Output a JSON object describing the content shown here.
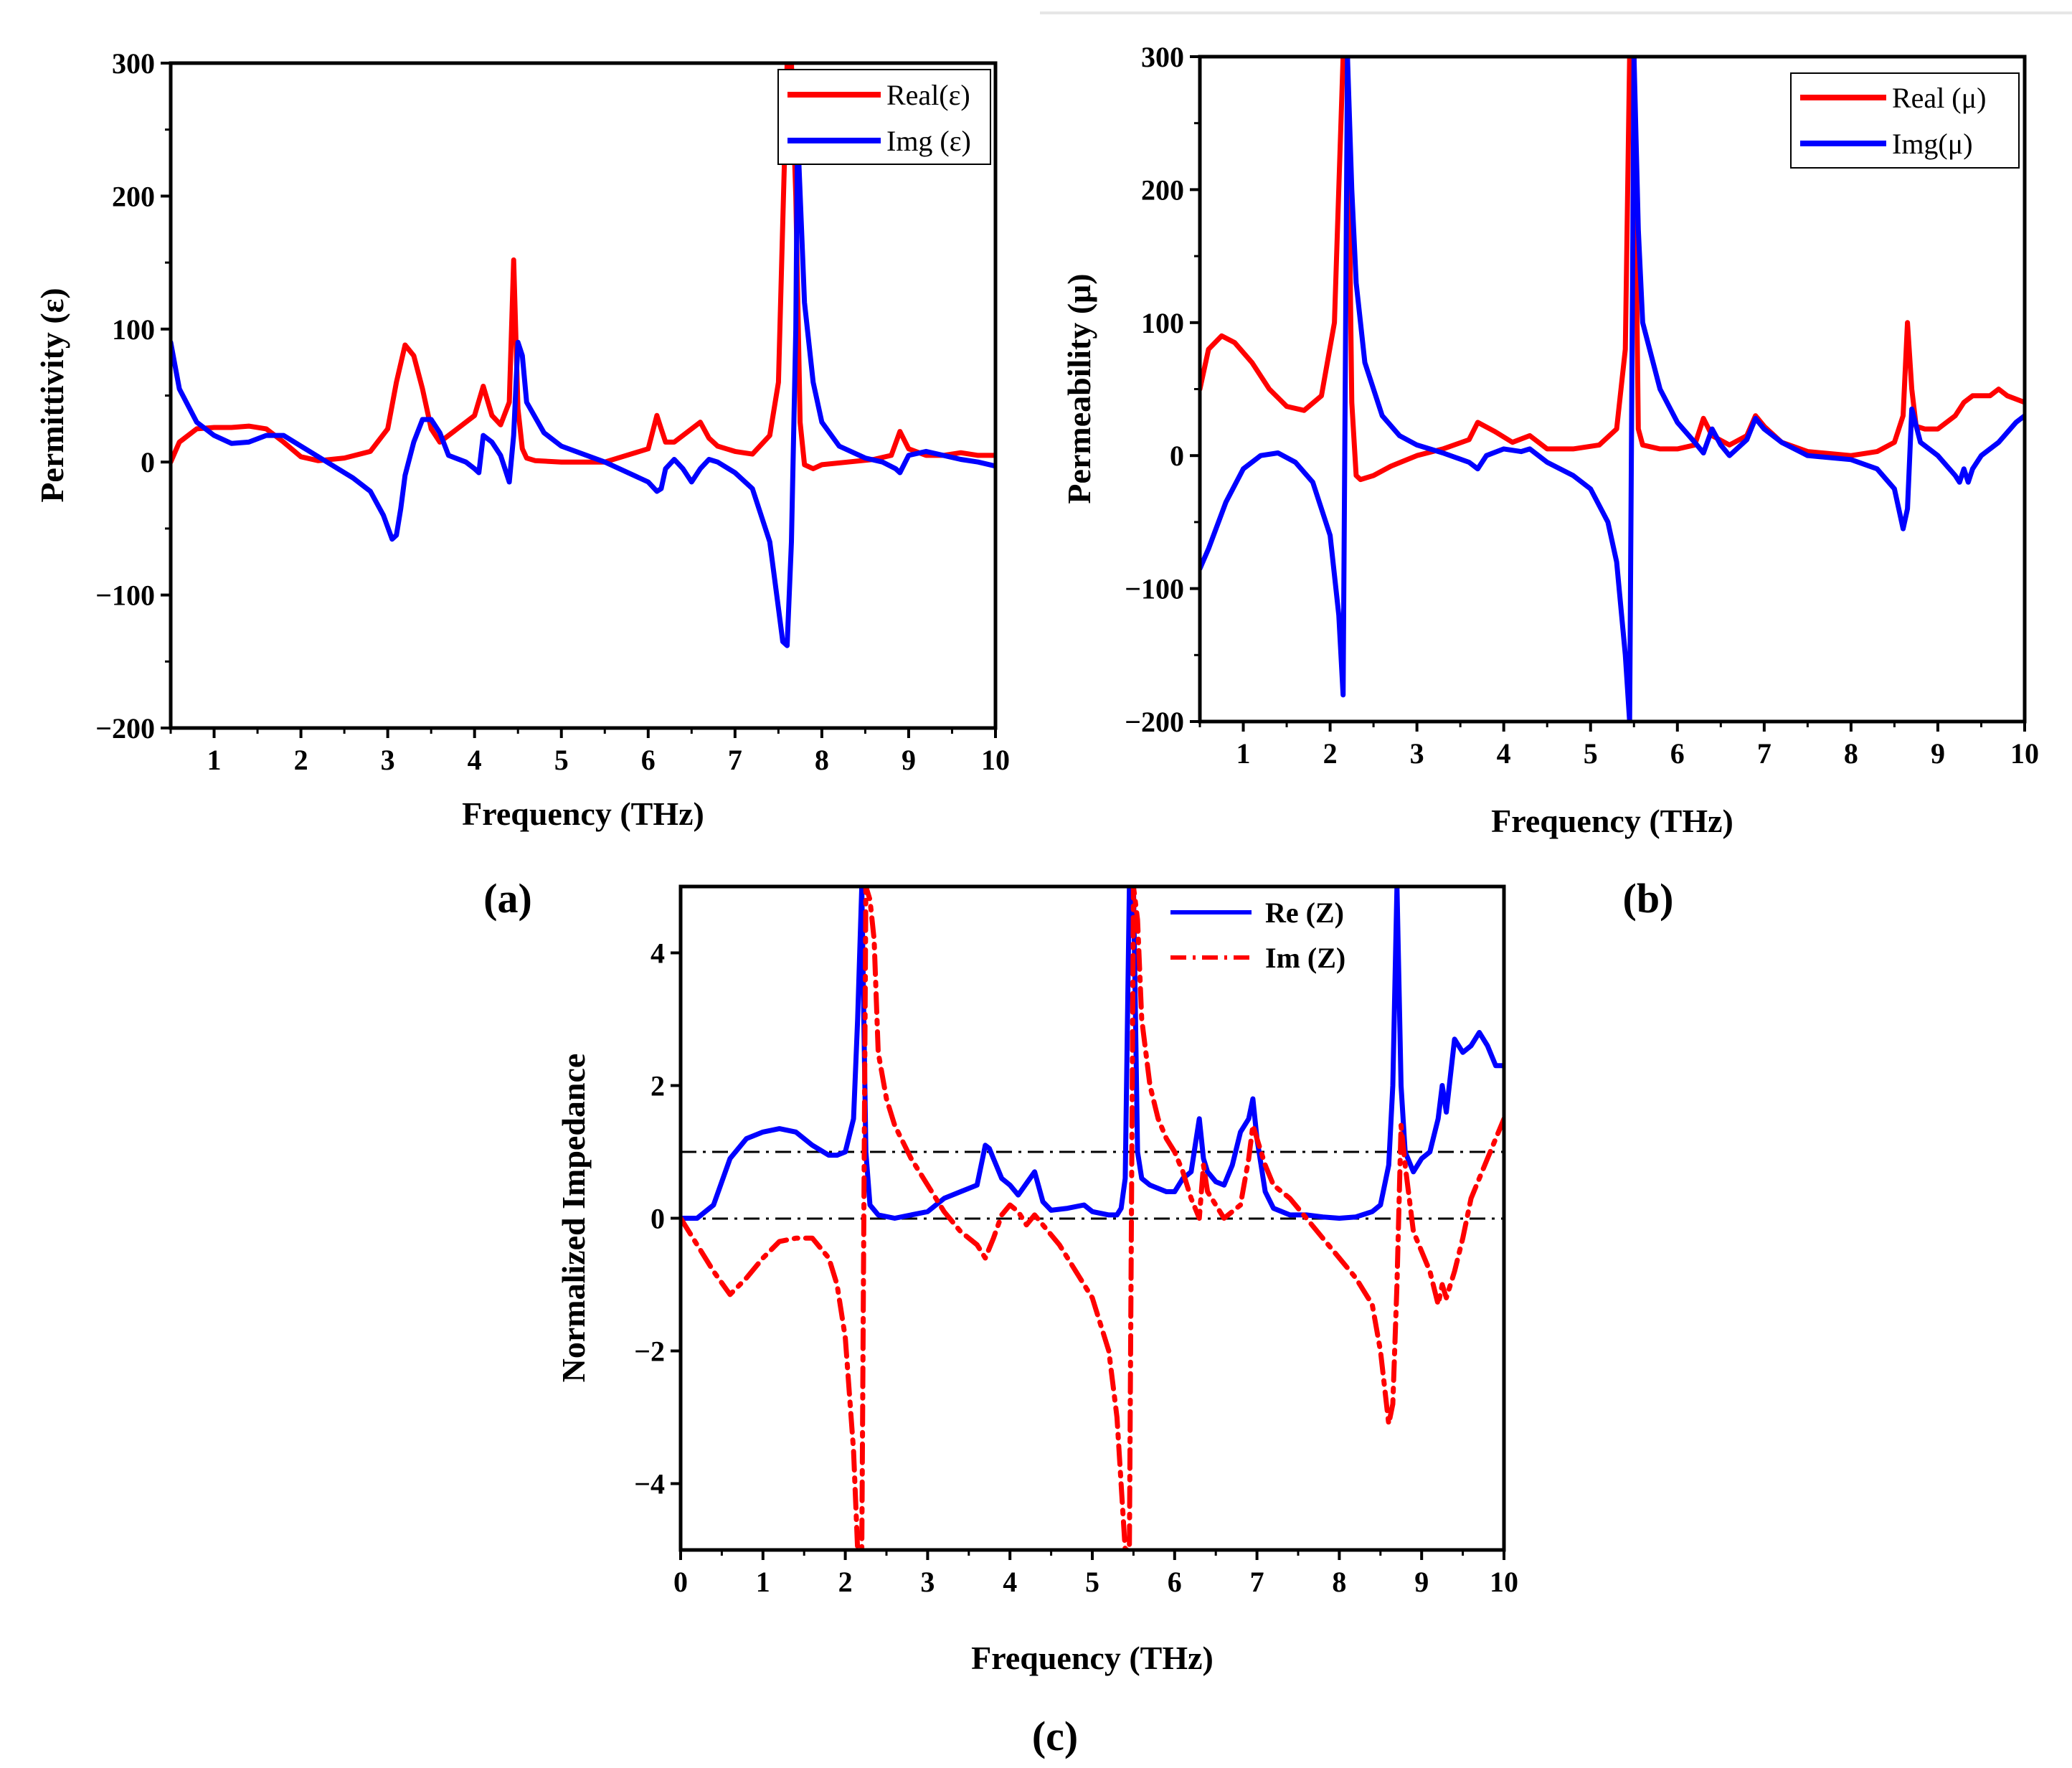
{
  "chart_data": [
    {
      "id": "a",
      "type": "line",
      "panel_label": "(a)",
      "xlabel": "Frequency (THz)",
      "ylabel": "Permittivity (ε)",
      "xlim": [
        0.5,
        10
      ],
      "ylim": [
        -200,
        300
      ],
      "xticks": [
        1,
        2,
        3,
        4,
        5,
        6,
        7,
        8,
        9,
        10
      ],
      "yticks": [
        -200,
        -100,
        0,
        100,
        200,
        300
      ],
      "ytick_labels": [
        "−200",
        "−100",
        "0",
        "100",
        "200",
        "300"
      ],
      "grid": false,
      "legend_position": "top-right",
      "series": [
        {
          "name": "Real(ε)",
          "color": "#ff0000",
          "dash": "solid",
          "x": [
            0.5,
            0.6,
            0.8,
            1.0,
            1.2,
            1.4,
            1.6,
            1.8,
            2.0,
            2.2,
            2.5,
            2.8,
            3.0,
            3.1,
            3.2,
            3.3,
            3.4,
            3.5,
            3.6,
            3.8,
            4.0,
            4.1,
            4.2,
            4.3,
            4.4,
            4.45,
            4.5,
            4.55,
            4.6,
            4.7,
            5.0,
            5.5,
            6.0,
            6.1,
            6.15,
            6.2,
            6.3,
            6.5,
            6.6,
            6.7,
            6.8,
            7.0,
            7.2,
            7.4,
            7.5,
            7.55,
            7.6,
            7.65,
            7.7,
            7.75,
            7.8,
            7.9,
            8.0,
            8.3,
            8.6,
            8.8,
            8.9,
            9.0,
            9.2,
            9.4,
            9.6,
            9.8,
            10.0
          ],
          "y": [
            0,
            15,
            25,
            26,
            26,
            27,
            25,
            15,
            4,
            1,
            3,
            8,
            25,
            60,
            88,
            80,
            55,
            25,
            15,
            25,
            35,
            57,
            35,
            28,
            45,
            152,
            40,
            10,
            3,
            1,
            0,
            0,
            10,
            35,
            25,
            15,
            15,
            25,
            30,
            18,
            12,
            8,
            6,
            20,
            60,
            180,
            300,
            300,
            200,
            30,
            -2,
            -5,
            -2,
            0,
            2,
            5,
            23,
            10,
            5,
            5,
            7,
            5,
            5
          ]
        },
        {
          "name": "Img (ε)",
          "color": "#0000ff",
          "dash": "solid",
          "x": [
            0.5,
            0.6,
            0.8,
            1.0,
            1.2,
            1.4,
            1.6,
            1.8,
            2.0,
            2.3,
            2.6,
            2.8,
            2.95,
            3.05,
            3.1,
            3.15,
            3.2,
            3.3,
            3.4,
            3.5,
            3.6,
            3.7,
            3.9,
            4.0,
            4.05,
            4.1,
            4.2,
            4.3,
            4.4,
            4.45,
            4.5,
            4.55,
            4.6,
            4.8,
            5.0,
            5.5,
            6.0,
            6.1,
            6.15,
            6.2,
            6.3,
            6.4,
            6.5,
            6.6,
            6.7,
            6.8,
            7.0,
            7.2,
            7.4,
            7.5,
            7.55,
            7.6,
            7.65,
            7.7,
            7.72,
            7.8,
            7.9,
            8.0,
            8.2,
            8.5,
            8.7,
            8.85,
            8.9,
            9.0,
            9.2,
            9.4,
            9.6,
            9.8,
            10.0
          ],
          "y": [
            90,
            55,
            30,
            20,
            14,
            15,
            20,
            20,
            12,
            0,
            -12,
            -22,
            -40,
            -58,
            -55,
            -35,
            -10,
            15,
            32,
            32,
            22,
            5,
            0,
            -5,
            -8,
            20,
            15,
            5,
            -15,
            20,
            90,
            80,
            45,
            22,
            12,
            0,
            -15,
            -22,
            -20,
            -5,
            2,
            -5,
            -15,
            -5,
            2,
            0,
            -8,
            -20,
            -60,
            -110,
            -135,
            -138,
            -60,
            100,
            250,
            120,
            60,
            30,
            12,
            3,
            0,
            -5,
            -8,
            5,
            8,
            5,
            2,
            0,
            -3
          ]
        }
      ]
    },
    {
      "id": "b",
      "type": "line",
      "panel_label": "(b)",
      "xlabel": "Frequency (THz)",
      "ylabel": "Permeability (μ)",
      "xlim": [
        0.5,
        10
      ],
      "ylim": [
        -200,
        300
      ],
      "xticks": [
        1,
        2,
        3,
        4,
        5,
        6,
        7,
        8,
        9,
        10
      ],
      "yticks": [
        -200,
        -100,
        0,
        100,
        200,
        300
      ],
      "ytick_labels": [
        "−200",
        "−100",
        "0",
        "100",
        "200",
        "300"
      ],
      "grid": false,
      "legend_position": "top-right",
      "series": [
        {
          "name": "Real (μ)",
          "color": "#ff0000",
          "dash": "solid",
          "x": [
            0.5,
            0.6,
            0.75,
            0.9,
            1.1,
            1.3,
            1.5,
            1.7,
            1.9,
            2.05,
            2.15,
            2.2,
            2.25,
            2.3,
            2.35,
            2.5,
            2.7,
            3.0,
            3.3,
            3.6,
            3.7,
            3.9,
            4.1,
            4.3,
            4.5,
            4.8,
            5.1,
            5.3,
            5.4,
            5.45,
            5.5,
            5.55,
            5.6,
            5.8,
            6.0,
            6.2,
            6.3,
            6.4,
            6.6,
            6.8,
            6.9,
            7.0,
            7.2,
            7.5,
            8.0,
            8.3,
            8.5,
            8.6,
            8.65,
            8.7,
            8.75,
            8.85,
            9.0,
            9.2,
            9.3,
            9.4,
            9.6,
            9.7,
            9.8,
            10.0
          ],
          "y": [
            50,
            80,
            90,
            85,
            70,
            50,
            37,
            34,
            45,
            100,
            300,
            300,
            40,
            -15,
            -18,
            -15,
            -8,
            0,
            5,
            12,
            25,
            18,
            10,
            15,
            5,
            5,
            8,
            20,
            80,
            300,
            300,
            20,
            8,
            5,
            5,
            8,
            28,
            15,
            8,
            15,
            30,
            22,
            10,
            3,
            0,
            3,
            10,
            30,
            100,
            50,
            22,
            20,
            20,
            30,
            40,
            45,
            45,
            50,
            45,
            40
          ]
        },
        {
          "name": "Img(μ)",
          "color": "#0000ff",
          "dash": "solid",
          "x": [
            0.5,
            0.6,
            0.8,
            1.0,
            1.2,
            1.4,
            1.6,
            1.8,
            2.0,
            2.1,
            2.15,
            2.2,
            2.25,
            2.3,
            2.4,
            2.6,
            2.8,
            3.0,
            3.3,
            3.6,
            3.7,
            3.8,
            4.0,
            4.2,
            4.3,
            4.5,
            4.8,
            5.0,
            5.2,
            5.3,
            5.4,
            5.45,
            5.5,
            5.55,
            5.6,
            5.8,
            6.0,
            6.2,
            6.3,
            6.4,
            6.5,
            6.6,
            6.8,
            6.9,
            7.0,
            7.2,
            7.5,
            8.0,
            8.3,
            8.5,
            8.6,
            8.65,
            8.7,
            8.8,
            9.0,
            9.2,
            9.25,
            9.3,
            9.35,
            9.4,
            9.5,
            9.7,
            9.9,
            10.0
          ],
          "y": [
            -85,
            -70,
            -35,
            -10,
            0,
            2,
            -5,
            -20,
            -60,
            -120,
            -180,
            300,
            200,
            130,
            70,
            30,
            15,
            8,
            2,
            -5,
            -10,
            0,
            5,
            3,
            5,
            -5,
            -15,
            -25,
            -50,
            -80,
            -150,
            -200,
            300,
            170,
            100,
            50,
            25,
            10,
            2,
            20,
            8,
            0,
            12,
            28,
            20,
            10,
            0,
            -3,
            -10,
            -25,
            -55,
            -40,
            35,
            10,
            0,
            -15,
            -20,
            -10,
            -20,
            -10,
            0,
            10,
            25,
            30
          ]
        }
      ]
    },
    {
      "id": "c",
      "type": "line",
      "panel_label": "(c)",
      "xlabel": "Frequency (THz)",
      "ylabel": "Normalized Impedance",
      "xlim": [
        0,
        10
      ],
      "ylim": [
        -5,
        5
      ],
      "xticks": [
        0,
        1,
        2,
        3,
        4,
        5,
        6,
        7,
        8,
        9,
        10
      ],
      "yticks": [
        -4,
        -2,
        0,
        2,
        4
      ],
      "ytick_labels": [
        "−4",
        "−2",
        "0",
        "2",
        "4"
      ],
      "grid": false,
      "legend_position": "top-right",
      "reference_lines": [
        0,
        1
      ],
      "series": [
        {
          "name": "Re (Z)",
          "color": "#0000ff",
          "dash": "solid",
          "x": [
            0,
            0.2,
            0.4,
            0.6,
            0.8,
            1.0,
            1.2,
            1.4,
            1.6,
            1.8,
            1.9,
            2.0,
            2.1,
            2.15,
            2.2,
            2.25,
            2.3,
            2.4,
            2.6,
            2.8,
            3.0,
            3.2,
            3.4,
            3.6,
            3.7,
            3.75,
            3.8,
            3.9,
            4.0,
            4.1,
            4.3,
            4.4,
            4.5,
            4.7,
            4.9,
            5.0,
            5.2,
            5.3,
            5.35,
            5.4,
            5.45,
            5.5,
            5.55,
            5.6,
            5.7,
            5.8,
            5.9,
            6.0,
            6.1,
            6.2,
            6.3,
            6.35,
            6.4,
            6.5,
            6.6,
            6.7,
            6.8,
            6.9,
            6.95,
            7.0,
            7.1,
            7.2,
            7.4,
            7.6,
            7.8,
            8.0,
            8.2,
            8.4,
            8.5,
            8.6,
            8.65,
            8.7,
            8.75,
            8.8,
            8.9,
            9.0,
            9.1,
            9.2,
            9.25,
            9.3,
            9.4,
            9.5,
            9.6,
            9.7,
            9.8,
            9.9,
            10.0
          ],
          "y": [
            0,
            0,
            0.2,
            0.9,
            1.2,
            1.3,
            1.35,
            1.3,
            1.1,
            0.95,
            0.95,
            1.0,
            1.5,
            3.0,
            5.0,
            1.0,
            0.2,
            0.05,
            0.0,
            0.05,
            0.1,
            0.3,
            0.4,
            0.5,
            1.1,
            1.05,
            0.9,
            0.6,
            0.5,
            0.35,
            0.7,
            0.25,
            0.12,
            0.15,
            0.2,
            0.1,
            0.05,
            0.05,
            0.15,
            0.6,
            5.0,
            5.0,
            1.0,
            0.6,
            0.5,
            0.45,
            0.4,
            0.4,
            0.6,
            0.7,
            1.5,
            0.9,
            0.7,
            0.55,
            0.5,
            0.8,
            1.3,
            1.5,
            1.8,
            1.2,
            0.4,
            0.15,
            0.05,
            0.05,
            0.02,
            0.0,
            0.02,
            0.1,
            0.2,
            0.8,
            2.0,
            5.0,
            2.0,
            1.0,
            0.7,
            0.9,
            1.0,
            1.5,
            2.0,
            1.6,
            2.7,
            2.5,
            2.6,
            2.8,
            2.6,
            2.3,
            2.3
          ]
        },
        {
          "name": "Im (Z)",
          "color": "#ff0000",
          "dash": "dash-dot",
          "x": [
            0,
            0.2,
            0.4,
            0.6,
            0.8,
            1.0,
            1.2,
            1.4,
            1.6,
            1.8,
            1.9,
            2.0,
            2.1,
            2.15,
            2.2,
            2.25,
            2.3,
            2.35,
            2.4,
            2.5,
            2.6,
            2.8,
            3.0,
            3.2,
            3.4,
            3.6,
            3.7,
            3.8,
            3.9,
            4.0,
            4.1,
            4.2,
            4.3,
            4.4,
            4.6,
            4.8,
            5.0,
            5.2,
            5.3,
            5.4,
            5.45,
            5.5,
            5.55,
            5.6,
            5.7,
            5.8,
            5.9,
            6.0,
            6.1,
            6.2,
            6.3,
            6.35,
            6.4,
            6.5,
            6.6,
            6.7,
            6.8,
            6.9,
            6.95,
            7.0,
            7.1,
            7.2,
            7.4,
            7.6,
            7.8,
            8.0,
            8.2,
            8.4,
            8.5,
            8.6,
            8.65,
            8.7,
            8.75,
            8.8,
            8.9,
            9.0,
            9.1,
            9.2,
            9.25,
            9.3,
            9.4,
            9.5,
            9.6,
            9.8,
            10.0
          ],
          "y": [
            0,
            -0.4,
            -0.8,
            -1.15,
            -0.9,
            -0.6,
            -0.35,
            -0.3,
            -0.3,
            -0.6,
            -1.0,
            -1.8,
            -3.5,
            -5.0,
            -5.0,
            5.0,
            4.8,
            4.2,
            2.5,
            1.8,
            1.4,
            0.9,
            0.5,
            0.1,
            -0.2,
            -0.4,
            -0.6,
            -0.3,
            0.05,
            0.2,
            0.1,
            -0.1,
            0.05,
            -0.1,
            -0.4,
            -0.8,
            -1.2,
            -2.0,
            -3.0,
            -5.0,
            -5.0,
            5.0,
            4.5,
            3.0,
            2.0,
            1.5,
            1.2,
            1.0,
            0.7,
            0.3,
            0.0,
            0.8,
            0.4,
            0.2,
            0.0,
            0.1,
            0.2,
            0.9,
            1.4,
            1.2,
            0.8,
            0.5,
            0.3,
            0.0,
            -0.3,
            -0.6,
            -0.9,
            -1.3,
            -2.0,
            -3.1,
            -2.8,
            -1.0,
            1.4,
            0.8,
            -0.2,
            -0.5,
            -0.8,
            -1.3,
            -1.0,
            -1.2,
            -0.8,
            -0.3,
            0.3,
            0.9,
            1.5
          ]
        }
      ]
    }
  ]
}
